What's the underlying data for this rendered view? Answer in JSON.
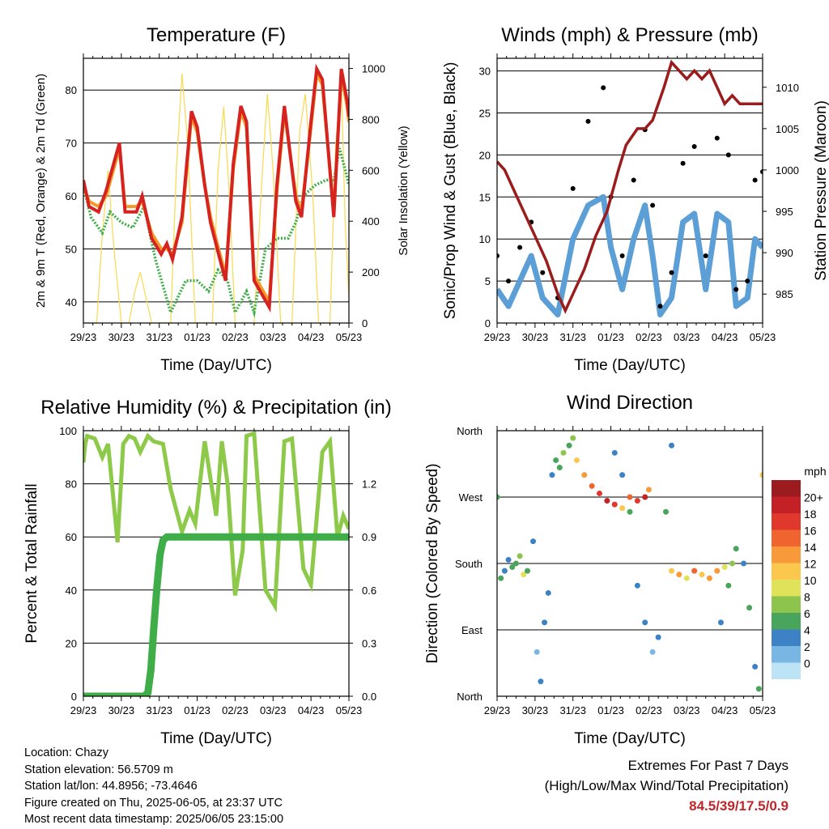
{
  "x_ticks": [
    "29/23",
    "30/23",
    "31/23",
    "01/23",
    "02/23",
    "03/23",
    "04/23",
    "05/23"
  ],
  "colors": {
    "t2": "#d7231f",
    "t9": "#f39a2b",
    "td": "#3fae49",
    "solar": "#f7dc5c",
    "gust": "#000000",
    "sonic": "#5c9fd6",
    "pressure": "#9b1c1c",
    "rh": "#8dca4a",
    "precip": "#3fae49",
    "extremes": "#c0262a"
  },
  "chart_data": [
    {
      "type": "line",
      "title": "Temperature (F)",
      "xlabel": "Time (Day/UTC)",
      "ylabel": "2m & 9m T (Red, Orange) & 2m Td (Green)",
      "y2label": "Solar Insolation (Yellow)",
      "xlim": [
        0,
        7
      ],
      "ylim": [
        36,
        86
      ],
      "y2lim": [
        0,
        1040
      ],
      "yticks": [
        40,
        50,
        60,
        70,
        80
      ],
      "y2ticks": [
        0,
        200,
        400,
        600,
        800,
        1000
      ],
      "series": [
        {
          "name": "2m T",
          "axis": "left",
          "x": [
            0,
            0.15,
            0.4,
            0.6,
            0.95,
            1.1,
            1.4,
            1.55,
            1.8,
            2.05,
            2.2,
            2.35,
            2.6,
            2.85,
            3.0,
            3.2,
            3.35,
            3.6,
            3.75,
            3.95,
            4.15,
            4.3,
            4.5,
            4.9,
            5.1,
            5.3,
            5.6,
            5.75,
            6.0,
            6.15,
            6.3,
            6.6,
            6.8,
            6.95,
            7.0
          ],
          "y": [
            63,
            58,
            57,
            61,
            70,
            57,
            57,
            60,
            52,
            49,
            51,
            48,
            56,
            76,
            73,
            62,
            55,
            48,
            44,
            66,
            77,
            74,
            44,
            39,
            62,
            77,
            59,
            56,
            74,
            84,
            82,
            56,
            84,
            78,
            75
          ]
        },
        {
          "name": "9m T",
          "axis": "left",
          "x": [
            0,
            0.15,
            0.4,
            0.6,
            0.95,
            1.1,
            1.4,
            1.55,
            1.8,
            2.05,
            2.2,
            2.35,
            2.6,
            2.85,
            3.0,
            3.2,
            3.35,
            3.6,
            3.75,
            3.95,
            4.15,
            4.3,
            4.5,
            4.9,
            5.1,
            5.3,
            5.6,
            5.75,
            6.0,
            6.15,
            6.3,
            6.6,
            6.8,
            6.95,
            7.0
          ],
          "y": [
            62,
            59,
            58,
            60,
            69,
            58,
            58,
            59,
            53,
            50,
            50,
            49,
            55,
            75,
            72,
            62,
            56,
            49,
            45,
            65,
            76,
            73,
            45,
            40,
            61,
            76,
            60,
            57,
            73,
            83,
            81,
            57,
            83,
            77,
            74
          ]
        },
        {
          "name": "2m Td",
          "axis": "left",
          "x": [
            0,
            0.2,
            0.5,
            0.7,
            1.0,
            1.3,
            1.6,
            1.9,
            2.1,
            2.3,
            2.5,
            2.7,
            3.0,
            3.3,
            3.55,
            3.8,
            4.0,
            4.3,
            4.5,
            4.8,
            5.1,
            5.4,
            5.6,
            5.8,
            6.1,
            6.4,
            6.6,
            6.75,
            6.9,
            7.0
          ],
          "y": [
            62,
            56,
            53,
            57,
            55,
            54,
            58,
            48,
            43,
            38,
            41,
            44,
            44,
            42,
            46,
            44,
            38,
            42,
            38,
            50,
            52,
            52,
            55,
            60,
            62,
            63,
            63,
            69,
            65,
            62
          ]
        },
        {
          "name": "Solar Insolation",
          "axis": "right",
          "x": [
            0,
            0.35,
            0.5,
            0.65,
            0.8,
            1.0,
            1.2,
            1.35,
            1.5,
            1.65,
            1.8,
            2.0,
            2.3,
            2.45,
            2.6,
            2.75,
            2.95,
            3.2,
            3.4,
            3.55,
            3.7,
            3.85,
            4.0,
            4.2,
            4.5,
            4.7,
            4.85,
            5.0,
            5.2,
            5.5,
            5.7,
            5.85,
            6.05,
            6.2,
            6.5,
            6.65,
            6.8,
            6.9,
            7.0
          ],
          "y": [
            0,
            0,
            350,
            600,
            300,
            0,
            0,
            120,
            200,
            100,
            0,
            0,
            0,
            600,
            980,
            700,
            0,
            0,
            0,
            600,
            850,
            500,
            0,
            0,
            0,
            550,
            900,
            600,
            0,
            0,
            750,
            900,
            500,
            0,
            0,
            700,
            950,
            400,
            100
          ]
        }
      ]
    },
    {
      "type": "line",
      "title": "Winds (mph) & Pressure (mb)",
      "xlabel": "Time (Day/UTC)",
      "ylabel": "Sonic/Prop Wind & Gust (Blue, Black)",
      "y2label": "Station Pressure (Maroon)",
      "xlim": [
        0,
        7
      ],
      "ylim": [
        0,
        31.5
      ],
      "y2lim": [
        981.5,
        1013.5
      ],
      "yticks": [
        0,
        5,
        10,
        15,
        20,
        25,
        30
      ],
      "y2ticks": [
        985,
        990,
        995,
        1000,
        1005,
        1010
      ],
      "series": [
        {
          "name": "Sonic/Prop Wind",
          "axis": "left",
          "x": [
            0,
            0.3,
            0.6,
            0.9,
            1.2,
            1.6,
            2.0,
            2.4,
            2.8,
            3.0,
            3.3,
            3.6,
            3.9,
            4.1,
            4.3,
            4.6,
            4.9,
            5.2,
            5.5,
            5.8,
            6.1,
            6.3,
            6.6,
            6.8,
            7.0
          ],
          "y": [
            4,
            2,
            5,
            8,
            3,
            1,
            10,
            14,
            15,
            9,
            4,
            10,
            14,
            8,
            1,
            3,
            12,
            13,
            4,
            13,
            12,
            2,
            3,
            10,
            9
          ]
        },
        {
          "name": "Gust",
          "axis": "left",
          "x": [
            0,
            0.3,
            0.6,
            0.9,
            1.2,
            1.6,
            2.0,
            2.4,
            2.8,
            3.0,
            3.3,
            3.6,
            3.9,
            4.1,
            4.3,
            4.6,
            4.9,
            5.2,
            5.5,
            5.8,
            6.1,
            6.3,
            6.6,
            6.8,
            7.0
          ],
          "y": [
            8,
            5,
            9,
            12,
            6,
            3,
            16,
            24,
            28,
            15,
            8,
            17,
            23,
            14,
            2,
            6,
            19,
            21,
            8,
            22,
            20,
            4,
            5,
            17,
            18
          ]
        },
        {
          "name": "Station Pressure",
          "axis": "right",
          "x": [
            0,
            0.2,
            0.5,
            0.8,
            1.0,
            1.3,
            1.6,
            1.8,
            2.0,
            2.3,
            2.6,
            2.9,
            3.2,
            3.4,
            3.7,
            3.9,
            4.1,
            4.4,
            4.6,
            4.8,
            5.0,
            5.2,
            5.4,
            5.6,
            5.8,
            6.0,
            6.2,
            6.4,
            6.6,
            6.8,
            7.0
          ],
          "y": [
            1001,
            1000,
            997,
            994,
            992,
            989,
            985,
            983,
            985,
            988,
            992,
            995,
            1000,
            1003,
            1005,
            1005,
            1006,
            1010,
            1013,
            1012,
            1011,
            1012,
            1011,
            1012,
            1010,
            1008,
            1009,
            1008,
            1008,
            1008,
            1008
          ]
        }
      ]
    },
    {
      "type": "line",
      "title": "Relative Humidity (%) & Precipitation (in)",
      "xlabel": "Time (Day/UTC)",
      "ylabel": "Percent & Total Rainfall",
      "xlim": [
        0,
        7
      ],
      "ylim": [
        0,
        100
      ],
      "y2lim": [
        0,
        1.5
      ],
      "yticks": [
        0,
        20,
        40,
        60,
        80,
        100
      ],
      "y2ticks": [
        "0.0",
        "0.3",
        "0.6",
        "0.9",
        "1.2"
      ],
      "series": [
        {
          "name": "Relative Humidity",
          "axis": "left",
          "x": [
            0,
            0.05,
            0.1,
            0.3,
            0.5,
            0.65,
            0.9,
            1.05,
            1.2,
            1.35,
            1.5,
            1.7,
            1.85,
            2.1,
            2.3,
            2.6,
            2.8,
            2.95,
            3.2,
            3.5,
            3.65,
            3.8,
            4.0,
            4.2,
            4.3,
            4.5,
            4.8,
            5.05,
            5.3,
            5.5,
            5.8,
            6.0,
            6.3,
            6.5,
            6.7,
            6.85,
            7.0
          ],
          "y": [
            88,
            95,
            98,
            97,
            90,
            95,
            58,
            95,
            98,
            97,
            92,
            98,
            96,
            95,
            78,
            62,
            70,
            65,
            96,
            68,
            96,
            80,
            38,
            55,
            98,
            99,
            40,
            34,
            96,
            97,
            48,
            42,
            92,
            96,
            60,
            68,
            63
          ]
        },
        {
          "name": "Total Rainfall",
          "axis": "right",
          "x": [
            0,
            1.6,
            1.7,
            1.78,
            1.86,
            1.94,
            2.02,
            2.1,
            2.2,
            3.0,
            4.0,
            5.0,
            6.0,
            7.0
          ],
          "y": [
            0,
            0,
            0.02,
            0.15,
            0.4,
            0.62,
            0.8,
            0.88,
            0.9,
            0.9,
            0.9,
            0.9,
            0.9,
            0.9
          ]
        }
      ]
    },
    {
      "type": "scatter",
      "title": "Wind Direction",
      "xlabel": "Time (Day/UTC)",
      "ylabel": "Direction (Colored By Speed)",
      "xlim": [
        0,
        7
      ],
      "ylim": [
        0,
        360
      ],
      "y_tick_labels": [
        "North",
        "East",
        "South",
        "West",
        "North"
      ],
      "colorbar_title": "mph",
      "colorbar_labels": [
        "20+",
        "18",
        "16",
        "14",
        "12",
        "10",
        "8",
        "6",
        "4",
        "2",
        "0"
      ],
      "colorbar_colors": [
        "#9b1b1e",
        "#c42126",
        "#e0382c",
        "#f0652f",
        "#f89a3a",
        "#fbc84d",
        "#e0e25a",
        "#8dc44e",
        "#4aa55c",
        "#3d82c4",
        "#7ab6e3",
        "#bde3f7"
      ],
      "series": [
        {
          "name": "segment-a",
          "x": [
            0.0,
            0.1,
            0.2,
            0.3,
            0.4,
            0.5,
            0.6,
            0.7,
            0.8
          ],
          "y": [
            270,
            160,
            170,
            185,
            175,
            180,
            190,
            165,
            170
          ],
          "speed": [
            5,
            4,
            3,
            2,
            4,
            5,
            6,
            8,
            4
          ]
        },
        {
          "name": "segment-b",
          "x": [
            0.95,
            1.05,
            1.15,
            1.25,
            1.35,
            1.45,
            1.55,
            1.65,
            1.75,
            1.9,
            2.0
          ],
          "y": [
            210,
            60,
            20,
            100,
            140,
            300,
            320,
            310,
            330,
            340,
            350
          ],
          "speed": [
            2,
            1,
            2,
            3,
            2,
            2,
            4,
            5,
            6,
            5,
            6
          ]
        },
        {
          "name": "segment-c",
          "x": [
            2.1,
            2.3,
            2.5,
            2.7,
            2.9,
            3.1,
            3.3,
            3.5,
            3.7,
            3.9,
            4.0
          ],
          "y": [
            320,
            300,
            285,
            275,
            265,
            260,
            255,
            270,
            265,
            270,
            280
          ],
          "speed": [
            10,
            12,
            14,
            16,
            18,
            17,
            10,
            14,
            16,
            18,
            12
          ]
        },
        {
          "name": "segment-d",
          "x": [
            3.1,
            3.3,
            3.5,
            3.7,
            3.9,
            4.1,
            4.25,
            4.45,
            4.6
          ],
          "y": [
            330,
            300,
            250,
            150,
            100,
            60,
            80,
            250,
            340
          ],
          "speed": [
            2,
            3,
            5,
            2,
            2,
            1,
            2,
            4,
            2
          ]
        },
        {
          "name": "segment-e",
          "x": [
            4.6,
            4.8,
            5.0,
            5.2,
            5.4,
            5.6,
            5.8,
            6.0,
            6.2
          ],
          "y": [
            170,
            165,
            160,
            170,
            165,
            160,
            170,
            175,
            180
          ],
          "speed": [
            10,
            12,
            8,
            14,
            10,
            12,
            13,
            8,
            6
          ]
        },
        {
          "name": "segment-f",
          "x": [
            5.9,
            6.1,
            6.3,
            6.5,
            6.65,
            6.8,
            6.9,
            7.0
          ],
          "y": [
            100,
            150,
            200,
            180,
            120,
            40,
            10,
            300
          ],
          "speed": [
            2,
            4,
            5,
            3,
            4,
            3,
            4,
            10
          ]
        }
      ]
    }
  ],
  "info": {
    "location": "Location: Chazy",
    "elevation": "Station elevation: 56.5709 m",
    "latlon": "Station lat/lon: 44.8956; -73.4646",
    "created": "Figure created on Thu, 2025-06-05, at 23:37 UTC",
    "recent": "Most recent data timestamp: 2025/06/05 23:15:00"
  },
  "extremes": {
    "title": "Extremes For Past 7 Days",
    "subtitle": "(High/Low/Max Wind/Total Precipitation)",
    "values": "84.5/39/17.5/0.9"
  }
}
